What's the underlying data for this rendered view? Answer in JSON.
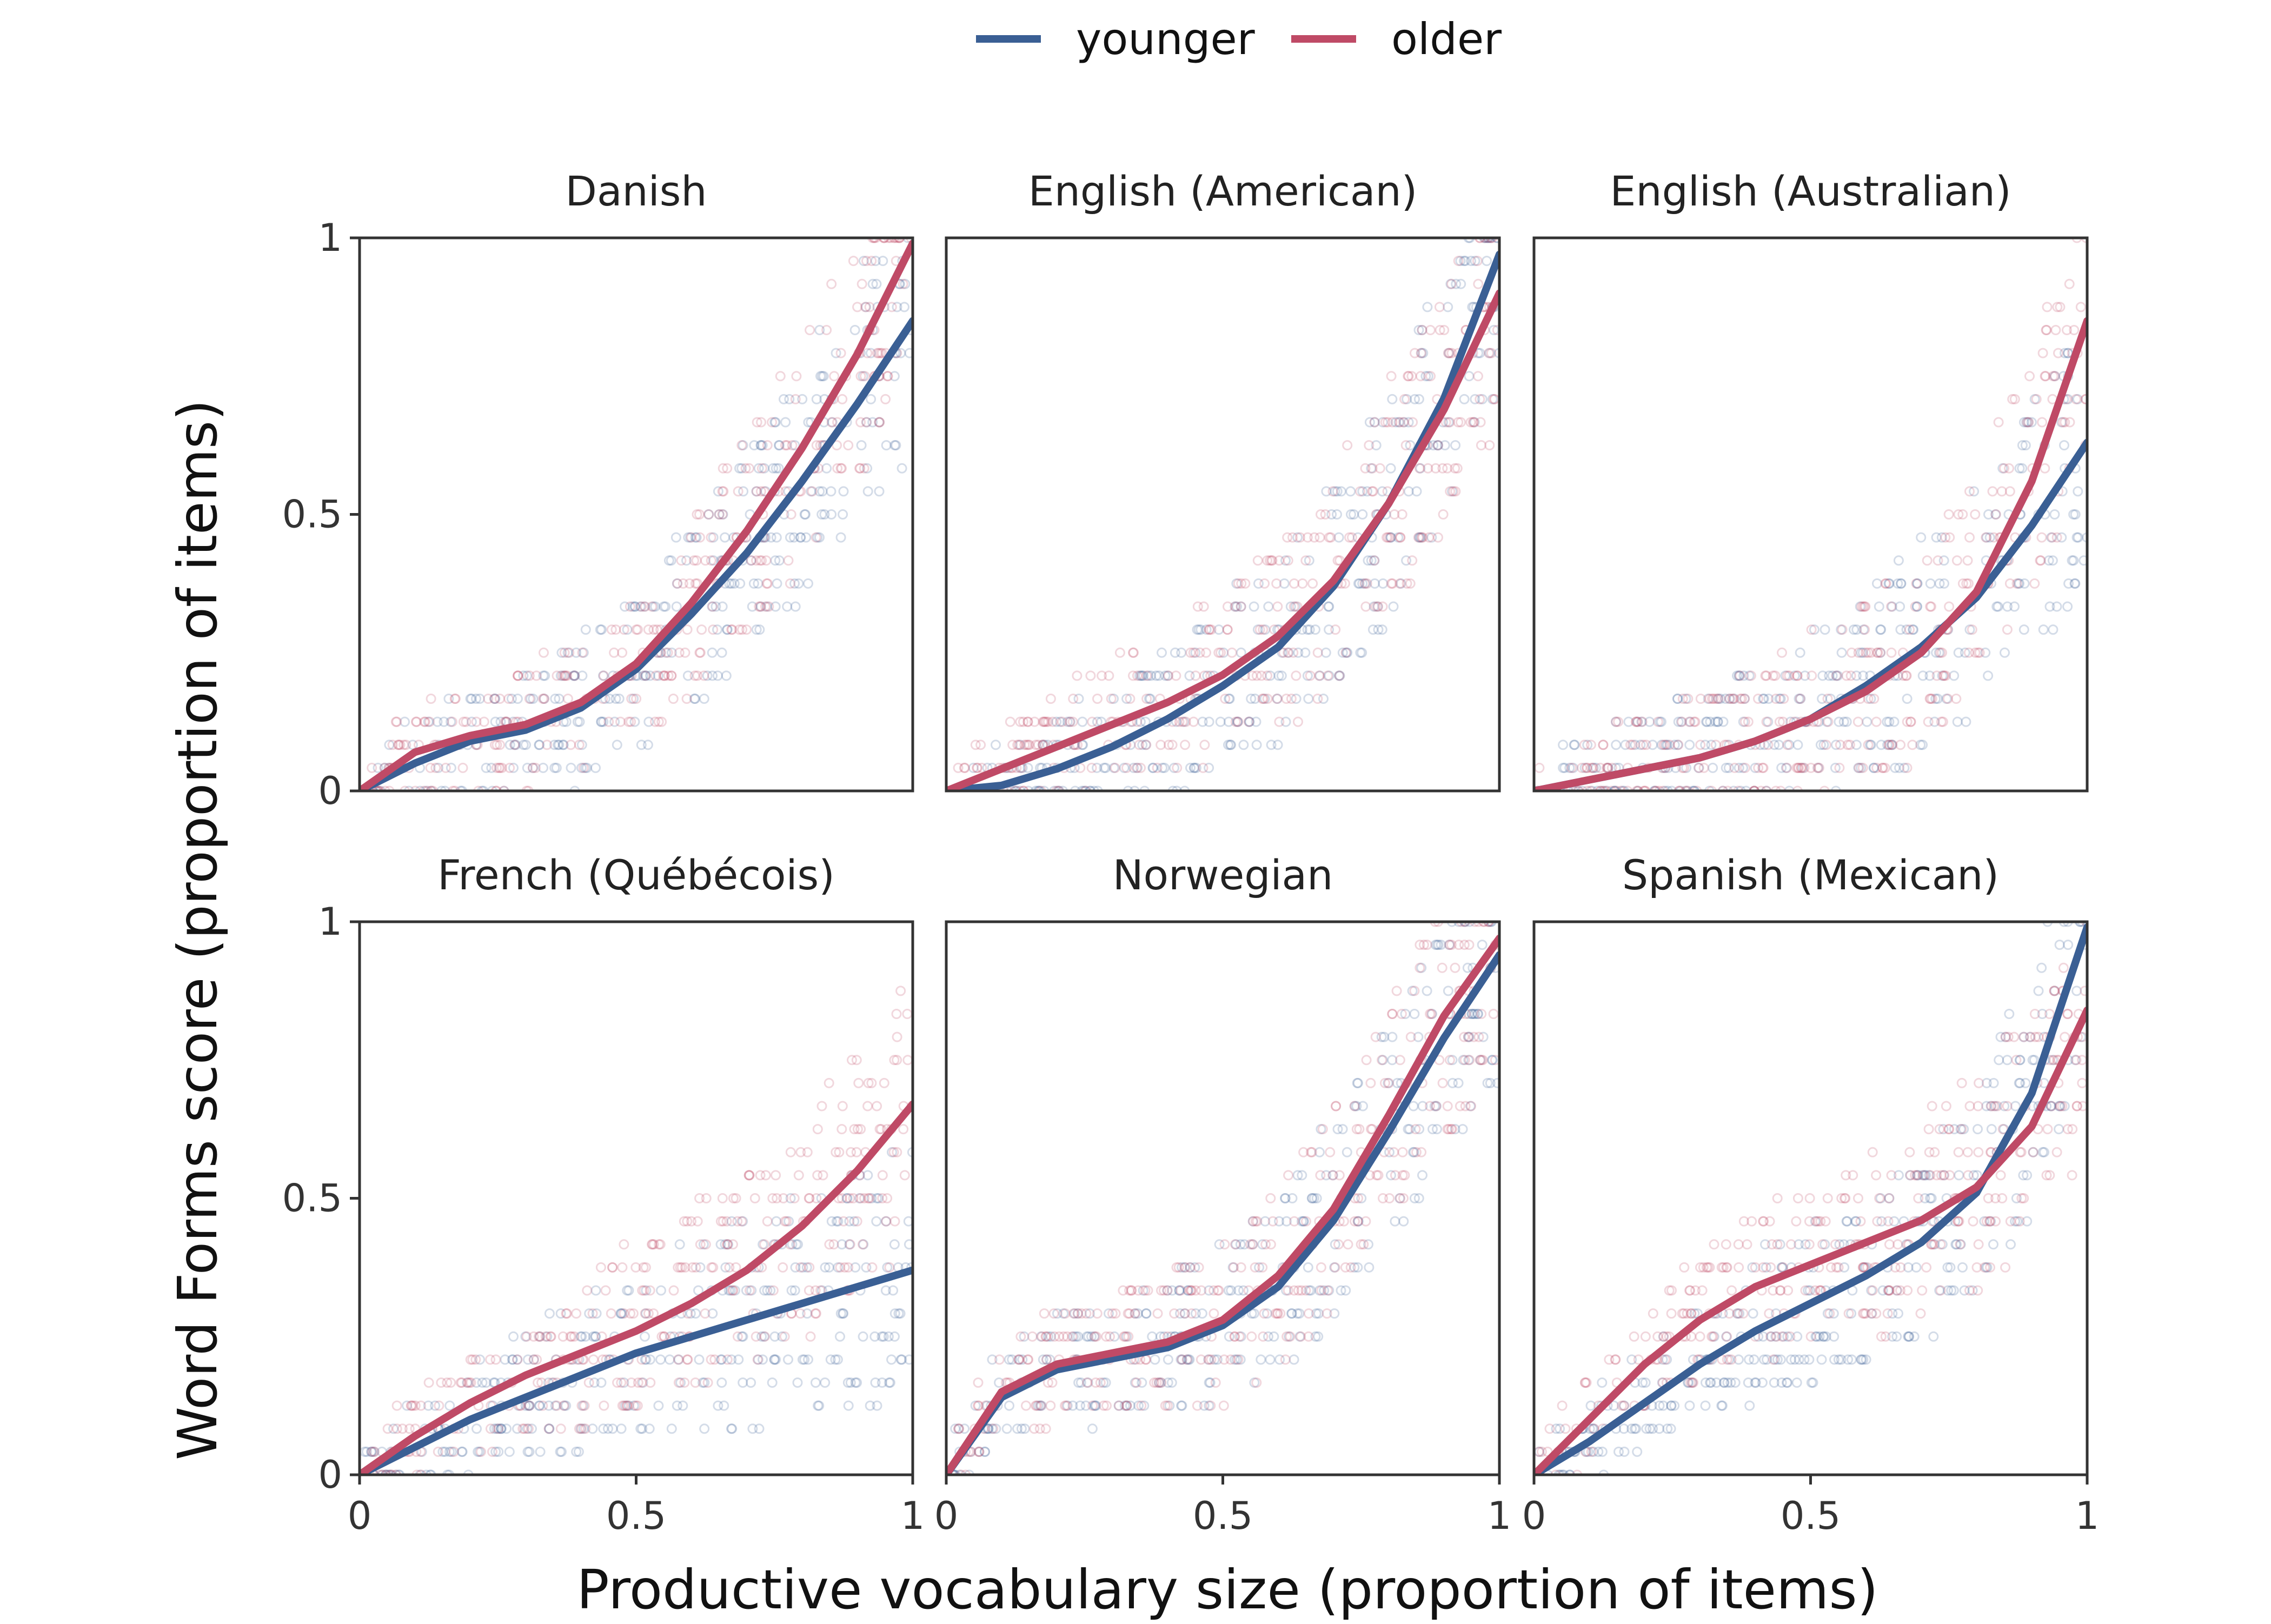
{
  "chart_data": {
    "type": "scatter",
    "facet_layout": "3 columns x 2 rows",
    "xlabel": "Productive vocabulary size (proportion of items)",
    "ylabel": "Word Forms score (proportion of items)",
    "xlim": [
      0,
      1
    ],
    "ylim": [
      0,
      1
    ],
    "x_ticks": [
      0,
      0.5,
      1
    ],
    "x_tick_labels": [
      "0",
      "0.5",
      "1"
    ],
    "y_ticks": [
      0,
      0.5,
      1
    ],
    "y_tick_labels": [
      "0",
      "0.5",
      "1"
    ],
    "grid": false,
    "legend": {
      "placement": "top-center",
      "entries": [
        {
          "label": "younger",
          "color": "#3a5f94"
        },
        {
          "label": "older",
          "color": "#bf4a66"
        }
      ]
    },
    "x": [
      0,
      0.1,
      0.2,
      0.3,
      0.4,
      0.5,
      0.6,
      0.7,
      0.8,
      0.9,
      1.0
    ],
    "panels": [
      {
        "title": "Danish",
        "series": [
          {
            "name": "younger",
            "color": "#3a5f94",
            "values": [
              0,
              0.05,
              0.09,
              0.11,
              0.15,
              0.22,
              0.32,
              0.43,
              0.56,
              0.7,
              0.85
            ]
          },
          {
            "name": "older",
            "color": "#bf4a66",
            "values": [
              0,
              0.07,
              0.1,
              0.12,
              0.16,
              0.23,
              0.34,
              0.47,
              0.62,
              0.79,
              0.99
            ]
          }
        ]
      },
      {
        "title": "English (American)",
        "series": [
          {
            "name": "younger",
            "color": "#3a5f94",
            "values": [
              0,
              0.01,
              0.04,
              0.08,
              0.13,
              0.19,
              0.26,
              0.37,
              0.52,
              0.71,
              0.97
            ]
          },
          {
            "name": "older",
            "color": "#bf4a66",
            "values": [
              0,
              0.04,
              0.08,
              0.12,
              0.16,
              0.21,
              0.28,
              0.38,
              0.52,
              0.69,
              0.9
            ]
          }
        ]
      },
      {
        "title": "English (Australian)",
        "series": [
          {
            "name": "younger",
            "color": "#3a5f94",
            "values": [
              0,
              0.02,
              0.04,
              0.06,
              0.09,
              0.13,
              0.19,
              0.26,
              0.35,
              0.48,
              0.63
            ]
          },
          {
            "name": "older",
            "color": "#bf4a66",
            "values": [
              0,
              0.02,
              0.04,
              0.06,
              0.09,
              0.13,
              0.18,
              0.25,
              0.36,
              0.56,
              0.85
            ]
          }
        ]
      },
      {
        "title": "French (Québécois)",
        "series": [
          {
            "name": "younger",
            "color": "#3a5f94",
            "values": [
              0,
              0.05,
              0.1,
              0.14,
              0.18,
              0.22,
              0.25,
              0.28,
              0.31,
              0.34,
              0.37
            ]
          },
          {
            "name": "older",
            "color": "#bf4a66",
            "values": [
              0,
              0.07,
              0.13,
              0.18,
              0.22,
              0.26,
              0.31,
              0.37,
              0.45,
              0.55,
              0.67
            ]
          }
        ]
      },
      {
        "title": "Norwegian",
        "series": [
          {
            "name": "younger",
            "color": "#3a5f94",
            "values": [
              0,
              0.14,
              0.19,
              0.21,
              0.23,
              0.27,
              0.34,
              0.46,
              0.62,
              0.79,
              0.94
            ]
          },
          {
            "name": "older",
            "color": "#bf4a66",
            "values": [
              0,
              0.15,
              0.2,
              0.22,
              0.24,
              0.28,
              0.36,
              0.48,
              0.65,
              0.83,
              0.97
            ]
          }
        ]
      },
      {
        "title": "Spanish (Mexican)",
        "series": [
          {
            "name": "younger",
            "color": "#3a5f94",
            "values": [
              0,
              0.06,
              0.13,
              0.2,
              0.26,
              0.31,
              0.36,
              0.42,
              0.51,
              0.69,
              0.99
            ]
          },
          {
            "name": "older",
            "color": "#bf4a66",
            "values": [
              0,
              0.1,
              0.2,
              0.28,
              0.34,
              0.38,
              0.42,
              0.46,
              0.52,
              0.63,
              0.84
            ]
          }
        ]
      }
    ]
  }
}
